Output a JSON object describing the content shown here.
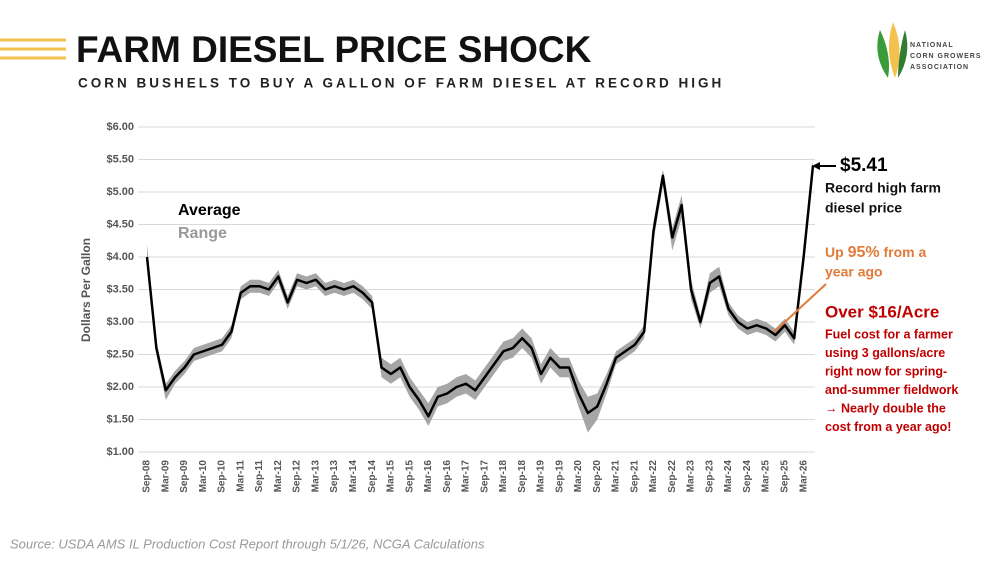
{
  "title": "FARM DIESEL PRICE SHOCK",
  "subtitle": "CORN BUSHELS TO BUY A GALLON OF FARM DIESEL AT RECORD HIGH",
  "logo": [
    "NATIONAL",
    "CORN GROWERS",
    "ASSOCIATION"
  ],
  "source": "Source: USDA AMS IL Production Cost Report through 5/1/26, NCGA Calculations",
  "chart_data": {
    "type": "line",
    "y_label": "Dollars Per Gallon",
    "categories": [
      "Sep-08",
      null,
      "Mar-09",
      null,
      "Sep-09",
      null,
      "Mar-10",
      null,
      "Sep-10",
      null,
      "Mar-11",
      null,
      "Sep-11",
      null,
      "Mar-12",
      null,
      "Sep-12",
      null,
      "Mar-13",
      null,
      "Sep-13",
      null,
      "Mar-14",
      null,
      "Sep-14",
      null,
      "Mar-15",
      null,
      "Sep-15",
      null,
      "Mar-16",
      null,
      "Sep-16",
      null,
      "Mar-17",
      null,
      "Sep-17",
      null,
      "Mar-18",
      null,
      "Sep-18",
      null,
      "Mar-19",
      null,
      "Sep-19",
      null,
      "Mar-20",
      null,
      "Sep-20",
      null,
      "Mar-21",
      null,
      "Sep-21",
      null,
      "Mar-22",
      null,
      "Sep-22",
      null,
      "Mar-23",
      null,
      "Sep-23",
      null,
      "Mar-24",
      null,
      "Sep-24",
      null,
      "Mar-25",
      null,
      "Sep-25",
      null,
      "Mar-26",
      null
    ],
    "series": [
      {
        "name": "Average",
        "color": "#000000",
        "values": [
          4.0,
          2.6,
          1.95,
          2.15,
          2.3,
          2.5,
          2.55,
          2.6,
          2.65,
          2.85,
          3.45,
          3.55,
          3.55,
          3.5,
          3.7,
          3.3,
          3.65,
          3.6,
          3.65,
          3.5,
          3.55,
          3.5,
          3.55,
          3.45,
          3.3,
          2.3,
          2.2,
          2.3,
          2.0,
          1.8,
          1.55,
          1.85,
          1.9,
          2.0,
          2.05,
          1.95,
          2.15,
          2.35,
          2.55,
          2.6,
          2.75,
          2.6,
          2.2,
          2.45,
          2.3,
          2.3,
          1.9,
          1.6,
          1.7,
          2.05,
          2.45,
          2.55,
          2.65,
          2.85,
          4.4,
          5.25,
          4.3,
          4.8,
          3.5,
          3.0,
          3.6,
          3.7,
          3.2,
          3.0,
          2.9,
          2.95,
          2.9,
          2.8,
          2.95,
          2.75,
          4.0,
          5.41
        ]
      },
      {
        "name": "Range",
        "color": "#a6a6a6",
        "high": [
          4.2,
          2.7,
          2.05,
          2.25,
          2.4,
          2.6,
          2.65,
          2.7,
          2.75,
          2.95,
          3.55,
          3.65,
          3.65,
          3.6,
          3.8,
          3.4,
          3.75,
          3.7,
          3.75,
          3.6,
          3.65,
          3.6,
          3.65,
          3.55,
          3.4,
          2.45,
          2.35,
          2.45,
          2.15,
          1.95,
          1.75,
          2.0,
          2.05,
          2.15,
          2.2,
          2.1,
          2.3,
          2.5,
          2.7,
          2.75,
          2.9,
          2.75,
          2.35,
          2.6,
          2.45,
          2.45,
          2.1,
          1.85,
          1.9,
          2.2,
          2.55,
          2.65,
          2.75,
          2.95,
          4.55,
          5.35,
          4.45,
          4.95,
          3.65,
          3.1,
          3.75,
          3.85,
          3.3,
          3.1,
          3.0,
          3.05,
          3.0,
          2.9,
          3.05,
          2.85,
          4.1,
          5.5
        ],
        "low": [
          3.85,
          2.5,
          1.8,
          2.05,
          2.2,
          2.4,
          2.45,
          2.5,
          2.55,
          2.75,
          3.35,
          3.45,
          3.45,
          3.4,
          3.6,
          3.2,
          3.55,
          3.5,
          3.55,
          3.4,
          3.45,
          3.4,
          3.45,
          3.35,
          3.2,
          2.15,
          2.05,
          2.15,
          1.85,
          1.65,
          1.4,
          1.7,
          1.75,
          1.85,
          1.9,
          1.8,
          2.0,
          2.2,
          2.4,
          2.45,
          2.6,
          2.45,
          2.05,
          2.3,
          2.15,
          2.15,
          1.7,
          1.3,
          1.5,
          1.9,
          2.35,
          2.45,
          2.55,
          2.75,
          4.25,
          5.1,
          4.1,
          4.6,
          3.35,
          2.9,
          3.45,
          3.55,
          3.1,
          2.9,
          2.8,
          2.85,
          2.8,
          2.7,
          2.85,
          2.65,
          3.9,
          5.3
        ]
      }
    ],
    "ylim": [
      1,
      6
    ],
    "yticks": [
      {
        "value": 1,
        "label": "$1.00"
      },
      {
        "value": 1.5,
        "label": "$1.50"
      },
      {
        "value": 2,
        "label": "$2.00"
      },
      {
        "value": 2.5,
        "label": "$2.50"
      },
      {
        "value": 3,
        "label": "$3.00"
      },
      {
        "value": 3.5,
        "label": "$3.50"
      },
      {
        "value": 4,
        "label": "$4.00"
      },
      {
        "value": 4.5,
        "label": "$4.50"
      },
      {
        "value": 5,
        "label": "$5.00"
      },
      {
        "value": 5.5,
        "label": "$5.50"
      },
      {
        "value": 6,
        "label": "$6.00"
      }
    ],
    "grid": true,
    "annotations": {
      "last": "$5.41",
      "record": [
        "Record high farm",
        "diesel price"
      ],
      "up": {
        "pre": "Up ",
        "pct": "95%",
        "post": " from a",
        "line2": "year ago"
      },
      "acre": "Over $16/Acre",
      "acre_text": [
        "Fuel cost for a farmer",
        "using 3 gallons/acre",
        "right now for spring-",
        "and-summer fieldwork",
        "→ Nearly double the",
        "cost from a year ago!"
      ]
    }
  }
}
